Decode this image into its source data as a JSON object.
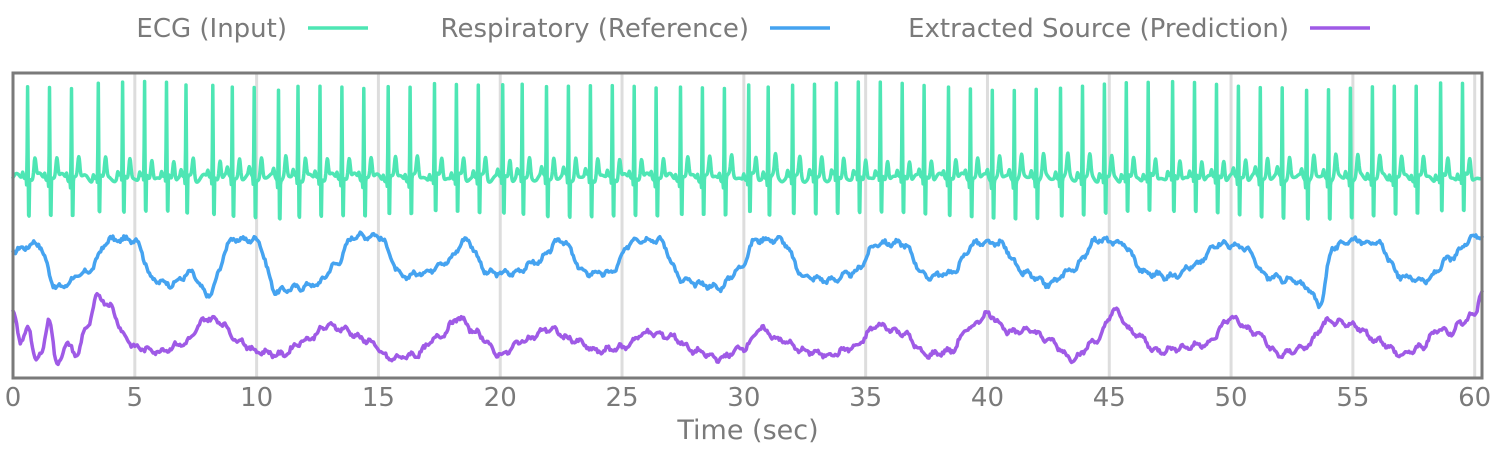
{
  "chart_data": {
    "type": "line",
    "title": "",
    "xlabel": "Time (sec)",
    "ylabel": "",
    "xlim": [
      0,
      60.3
    ],
    "x_ticks": [
      0,
      5,
      10,
      15,
      20,
      25,
      30,
      35,
      40,
      45,
      50,
      55,
      60
    ],
    "x_tick_labels": [
      "0",
      "5",
      "10",
      "15",
      "20",
      "25",
      "30",
      "35",
      "40",
      "45",
      "50",
      "55",
      "60"
    ],
    "grid": "vertical",
    "y_ticks_visible": false,
    "legend_position": "top",
    "series": [
      {
        "name": "ECG (Input)",
        "color": "#4ee6b4",
        "kind": "ecg",
        "r_peak_times": [
          0.6,
          1.5,
          2.4,
          3.5,
          4.5,
          5.4,
          6.3,
          7.1,
          8.2,
          9.0,
          9.9,
          10.9,
          11.7,
          12.6,
          13.5,
          14.4,
          15.4,
          16.3,
          17.3,
          18.2,
          19.1,
          20.1,
          20.9,
          21.9,
          22.8,
          23.7,
          24.6,
          25.5,
          26.4,
          27.4,
          28.3,
          29.2,
          30.2,
          31.0,
          32.0,
          32.9,
          33.8,
          34.7,
          35.6,
          36.5,
          37.4,
          38.4,
          39.3,
          40.2,
          41.1,
          42.0,
          43.0,
          43.9,
          44.8,
          45.7,
          46.6,
          47.6,
          48.5,
          49.4,
          50.3,
          51.2,
          52.1,
          53.1,
          54.0,
          54.9,
          55.8,
          56.7,
          57.6,
          58.6,
          59.5
        ],
        "baseline": 0.0,
        "r_peak_value": 1.0,
        "s_trough_value": -0.55
      },
      {
        "name": "Respiratory (Reference)",
        "color": "#45a3f0",
        "kind": "resp",
        "x": [
          0.0,
          1.0,
          1.8,
          3.0,
          4.0,
          5.0,
          5.8,
          6.5,
          7.3,
          8.0,
          9.0,
          10.0,
          10.8,
          11.6,
          12.5,
          13.2,
          14.0,
          15.0,
          16.0,
          16.8,
          17.8,
          18.6,
          19.5,
          20.5,
          21.5,
          22.5,
          23.5,
          24.5,
          25.5,
          26.5,
          27.5,
          28.2,
          29.0,
          29.8,
          30.5,
          31.5,
          32.5,
          33.5,
          34.5,
          35.5,
          36.5,
          37.5,
          38.5,
          39.5,
          40.5,
          41.5,
          42.5,
          43.5,
          44.5,
          45.5,
          46.5,
          47.5,
          48.5,
          49.5,
          50.5,
          51.5,
          52.5,
          53.2,
          53.6,
          54.2,
          55.0,
          56.0,
          57.0,
          58.0,
          59.0,
          60.0,
          60.3
        ],
        "y": [
          0.8,
          0.9,
          0.3,
          0.5,
          0.95,
          0.95,
          0.4,
          0.35,
          0.5,
          0.2,
          0.95,
          0.95,
          0.25,
          0.3,
          0.35,
          0.6,
          1.0,
          1.0,
          0.45,
          0.5,
          0.65,
          0.95,
          0.5,
          0.5,
          0.65,
          0.95,
          0.5,
          0.5,
          0.95,
          0.95,
          0.4,
          0.35,
          0.3,
          0.55,
          0.95,
          0.95,
          0.45,
          0.4,
          0.5,
          0.9,
          0.9,
          0.45,
          0.5,
          0.9,
          0.9,
          0.5,
          0.35,
          0.55,
          0.95,
          0.9,
          0.5,
          0.45,
          0.6,
          0.9,
          0.85,
          0.45,
          0.4,
          0.3,
          0.05,
          0.85,
          0.95,
          0.9,
          0.45,
          0.4,
          0.7,
          1.0,
          1.0
        ]
      },
      {
        "name": "Extracted Source (Prediction)",
        "color": "#9f5ae6",
        "kind": "pred",
        "x": [
          0.0,
          0.3,
          0.6,
          0.9,
          1.2,
          1.5,
          1.8,
          2.2,
          2.6,
          3.0,
          3.5,
          4.0,
          4.6,
          5.0,
          6.0,
          7.0,
          8.0,
          8.5,
          9.2,
          10.0,
          11.0,
          12.0,
          13.0,
          13.5,
          14.5,
          15.5,
          16.5,
          17.5,
          18.3,
          19.0,
          20.0,
          21.0,
          22.0,
          23.0,
          24.0,
          25.0,
          26.0,
          27.0,
          28.0,
          29.0,
          30.0,
          30.7,
          31.5,
          32.5,
          33.5,
          34.5,
          35.5,
          36.5,
          37.5,
          38.5,
          39.2,
          40.0,
          41.0,
          41.7,
          42.5,
          43.5,
          44.5,
          45.2,
          46.0,
          47.0,
          48.0,
          49.0,
          50.0,
          51.0,
          52.0,
          53.0,
          54.0,
          55.0,
          56.0,
          57.0,
          57.8,
          58.5,
          59.0,
          59.5,
          60.0,
          60.3
        ],
        "y": [
          0.75,
          0.3,
          0.55,
          0.1,
          0.2,
          0.65,
          0.0,
          0.3,
          0.15,
          0.5,
          0.95,
          0.8,
          0.4,
          0.25,
          0.2,
          0.3,
          0.65,
          0.6,
          0.35,
          0.2,
          0.15,
          0.35,
          0.55,
          0.5,
          0.35,
          0.1,
          0.15,
          0.4,
          0.65,
          0.45,
          0.15,
          0.35,
          0.5,
          0.35,
          0.2,
          0.25,
          0.45,
          0.4,
          0.2,
          0.1,
          0.25,
          0.5,
          0.35,
          0.2,
          0.15,
          0.25,
          0.55,
          0.45,
          0.15,
          0.2,
          0.5,
          0.7,
          0.45,
          0.5,
          0.35,
          0.1,
          0.35,
          0.75,
          0.45,
          0.2,
          0.25,
          0.3,
          0.65,
          0.45,
          0.15,
          0.25,
          0.6,
          0.55,
          0.35,
          0.15,
          0.25,
          0.5,
          0.45,
          0.6,
          0.7,
          1.0
        ]
      }
    ]
  }
}
